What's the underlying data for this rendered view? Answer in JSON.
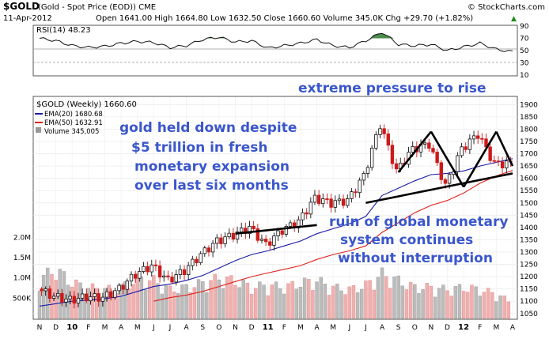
{
  "header": {
    "ticker": "$GOLD",
    "desc": "(Gold - Spot Price (EOD)) CME",
    "date": "11-Apr-2012",
    "ohlc": "Open 1641.00  High 1664.80  Low 1632.50  Close 1660.60  Volume 345.0K  Chg +29.70 (+1.82%)",
    "source": "© StockCharts.com",
    "chg_arrow": "▲"
  },
  "rsi_panel": {
    "label": "RSI(14) 48.23",
    "ticks": [
      "90",
      "70",
      "50",
      "30",
      "10"
    ]
  },
  "price_panel": {
    "title": "$GOLD (Weekly) 1660.60",
    "legend": [
      {
        "text": "EMA(20) 1680.68",
        "color": "#1a1aa8"
      },
      {
        "text": "EMA(50) 1632.91",
        "color": "#e0201a"
      },
      {
        "text": "Volume 345,005",
        "color": "#666666"
      }
    ],
    "yticks": [
      "1900",
      "1850",
      "1800",
      "1750",
      "1700",
      "1650",
      "1600",
      "1550",
      "1500",
      "1450",
      "1400",
      "1350",
      "1300",
      "1250",
      "1200",
      "1150",
      "1100",
      "1050"
    ],
    "vol_ticks": [
      "2.0M",
      "1.5M",
      "1.0M",
      "500K"
    ],
    "annotations": {
      "top": "extreme pressure to rise",
      "left": [
        "gold held down despite",
        "$5 trillion in fresh",
        "monetary expansion",
        "over last six months"
      ],
      "right": [
        "ruin of global monetary",
        "system continues",
        "without interruption"
      ]
    }
  },
  "xaxis": [
    "N",
    "D",
    "10",
    "F",
    "M",
    "A",
    "M",
    "J",
    "J",
    "A",
    "S",
    "O",
    "N",
    "D",
    "11",
    "F",
    "M",
    "A",
    "M",
    "J",
    "J",
    "A",
    "S",
    "O",
    "N",
    "D",
    "12",
    "F",
    "M",
    "A"
  ],
  "colors": {
    "up": "#111111",
    "down": "#cc1a1a",
    "ema20": "#1a1aa8",
    "ema50": "#e0201a",
    "annot": "#3a56cc",
    "vol_up": "#bcbcbc",
    "vol_down": "#f0b0b0"
  },
  "chart_data": [
    {
      "type": "line",
      "title": "RSI(14)",
      "ylim": [
        10,
        90
      ],
      "x": [
        "2009-11",
        "2009-12",
        "2010-01",
        "2010-02",
        "2010-03",
        "2010-04",
        "2010-05",
        "2010-06",
        "2010-07",
        "2010-08",
        "2010-09",
        "2010-10",
        "2010-11",
        "2010-12",
        "2011-01",
        "2011-02",
        "2011-03",
        "2011-04",
        "2011-05",
        "2011-06",
        "2011-07",
        "2011-08",
        "2011-09",
        "2011-10",
        "2011-11",
        "2011-12",
        "2012-01",
        "2012-02",
        "2012-03",
        "2012-04"
      ],
      "values": [
        70,
        66,
        58,
        55,
        57,
        62,
        65,
        63,
        55,
        58,
        68,
        72,
        64,
        66,
        54,
        58,
        62,
        68,
        58,
        55,
        66,
        80,
        60,
        58,
        60,
        50,
        56,
        62,
        52,
        48
      ]
    },
    {
      "type": "candlestick",
      "title": "$GOLD (Weekly) 1660.60",
      "ylim": [
        1030,
        1930
      ],
      "x": [
        "2009-11",
        "2009-12",
        "2010-01",
        "2010-02",
        "2010-03",
        "2010-04",
        "2010-05",
        "2010-06",
        "2010-07",
        "2010-08",
        "2010-09",
        "2010-10",
        "2010-11",
        "2010-12",
        "2011-01",
        "2011-02",
        "2011-03",
        "2011-04",
        "2011-05",
        "2011-06",
        "2011-07",
        "2011-08",
        "2011-09",
        "2011-10",
        "2011-11",
        "2011-12",
        "2012-01",
        "2012-02",
        "2012-03",
        "2012-04"
      ],
      "close": [
        1150,
        1120,
        1105,
        1118,
        1115,
        1150,
        1210,
        1245,
        1185,
        1225,
        1290,
        1345,
        1370,
        1400,
        1330,
        1390,
        1425,
        1520,
        1500,
        1510,
        1610,
        1820,
        1630,
        1720,
        1740,
        1570,
        1720,
        1780,
        1660,
        1660
      ],
      "ema20": [
        1080,
        1090,
        1100,
        1105,
        1110,
        1120,
        1140,
        1160,
        1170,
        1185,
        1205,
        1235,
        1265,
        1290,
        1305,
        1325,
        1345,
        1375,
        1395,
        1415,
        1445,
        1530,
        1560,
        1590,
        1615,
        1620,
        1630,
        1650,
        1665,
        1680
      ],
      "ema50": [
        null,
        null,
        null,
        null,
        null,
        null,
        null,
        1100,
        1115,
        1125,
        1140,
        1160,
        1180,
        1200,
        1215,
        1230,
        1245,
        1270,
        1290,
        1305,
        1325,
        1380,
        1420,
        1460,
        1490,
        1510,
        1540,
        1580,
        1610,
        1632
      ],
      "volume_k": [
        900,
        1100,
        800,
        700,
        650,
        700,
        900,
        850,
        650,
        700,
        800,
        900,
        850,
        700,
        750,
        700,
        800,
        850,
        700,
        650,
        750,
        1000,
        850,
        700,
        700,
        650,
        700,
        650,
        550,
        345
      ],
      "trendlines": [
        {
          "from": [
            "2010-11",
            1375
          ],
          "to": [
            "2011-04",
            1410
          ]
        },
        {
          "from": [
            "2011-07",
            1500
          ],
          "to": [
            "2012-04",
            1620
          ]
        },
        {
          "from": [
            "2011-09",
            1625
          ],
          "to": [
            "2011-11",
            1790
          ]
        },
        {
          "from": [
            "2011-11",
            1790
          ],
          "to": [
            "2012-01",
            1565
          ]
        },
        {
          "from": [
            "2012-01",
            1565
          ],
          "to": [
            "2012-03",
            1790
          ]
        },
        {
          "from": [
            "2012-03",
            1790
          ],
          "to": [
            "2012-04",
            1650
          ]
        }
      ]
    }
  ]
}
